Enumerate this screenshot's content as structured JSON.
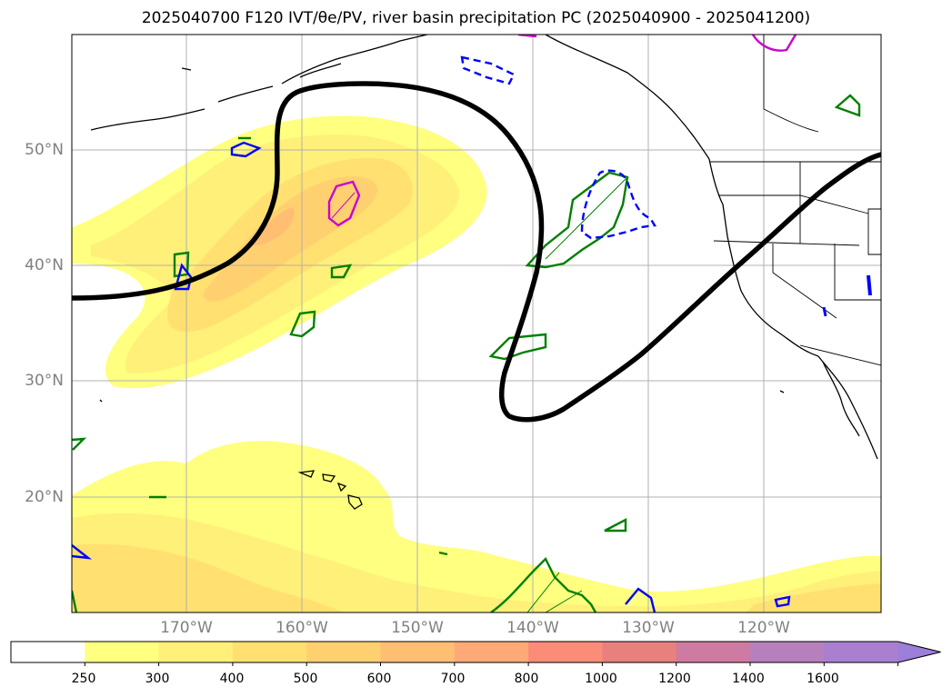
{
  "title": "2025040700 F120 IVT/θe/PV, river basin precipitation PC (2025040900 - 2025041200)",
  "map": {
    "lat_labels": [
      "50°N",
      "40°N",
      "30°N",
      "20°N"
    ],
    "lon_labels": [
      "170°W",
      "160°W",
      "150°W",
      "140°W",
      "130°W",
      "120°W"
    ]
  },
  "colorbar": {
    "levels": [
      "250",
      "300",
      "400",
      "500",
      "600",
      "700",
      "800",
      "1000",
      "1200",
      "1400",
      "1600"
    ],
    "colors": [
      "#ffffff",
      "#ffff80",
      "#fff07a",
      "#ffe070",
      "#ffd070",
      "#ffbe72",
      "#ffa878",
      "#fa8c78",
      "#e8807e",
      "#cf7aa0",
      "#b87fbd",
      "#a97fd0",
      "#9b7fd8"
    ]
  },
  "colors": {
    "pv_contour": "#000000",
    "green_contour": "#008000",
    "blue_contour": "#0000ff",
    "magenta_contour": "#cc00cc",
    "grid": "#b0b0b0"
  }
}
